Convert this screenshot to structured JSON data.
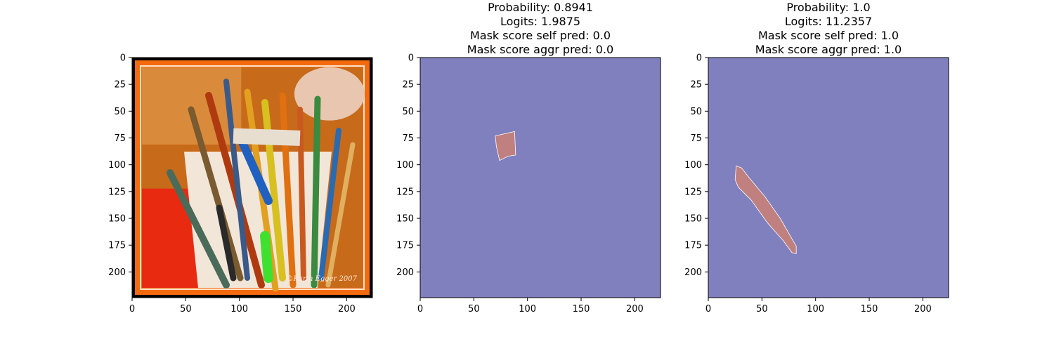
{
  "chart_data": [
    {
      "type": "image",
      "title_lines": [],
      "image_content": "paintbrushes in a bucket, orange frame",
      "signature": "©Karin Egger 2007",
      "xlim": [
        0,
        224
      ],
      "ylim": [
        224,
        0
      ],
      "xticks": [
        "0",
        "50",
        "100",
        "150",
        "200"
      ],
      "yticks": [
        "0",
        "25",
        "50",
        "75",
        "100",
        "125",
        "150",
        "175",
        "200"
      ]
    },
    {
      "type": "heatmap",
      "title_lines": [
        "Probability: 0.8941",
        "Logits: 1.9875",
        "Mask score self pred: 0.0",
        "Mask score aggr pred: 0.0"
      ],
      "xlim": [
        0,
        224
      ],
      "ylim": [
        224,
        0
      ],
      "xticks": [
        "0",
        "50",
        "100",
        "150",
        "200"
      ],
      "yticks": [
        "0",
        "25",
        "50",
        "75",
        "100",
        "125",
        "150",
        "175",
        "200"
      ],
      "background_color": "#8080bf",
      "mask_color": "#bf807f",
      "mask_region": [
        [
          70,
          73
        ],
        [
          88,
          69
        ],
        [
          89,
          91
        ],
        [
          82,
          92
        ],
        [
          74,
          96
        ],
        [
          71,
          83
        ]
      ]
    },
    {
      "type": "heatmap",
      "title_lines": [
        "Probability: 1.0",
        "Logits: 11.2357",
        "Mask score self pred: 1.0",
        "Mask score aggr pred: 1.0"
      ],
      "xlim": [
        0,
        224
      ],
      "ylim": [
        224,
        0
      ],
      "xticks": [
        "0",
        "50",
        "100",
        "150",
        "200"
      ],
      "yticks": [
        "0",
        "25",
        "50",
        "75",
        "100",
        "125",
        "150",
        "175",
        "200"
      ],
      "background_color": "#8080bf",
      "mask_color": "#bf807f",
      "mask_region": [
        [
          26,
          101
        ],
        [
          31,
          103
        ],
        [
          38,
          112
        ],
        [
          53,
          130
        ],
        [
          67,
          150
        ],
        [
          82,
          176
        ],
        [
          82,
          183
        ],
        [
          78,
          182
        ],
        [
          70,
          171
        ],
        [
          55,
          154
        ],
        [
          40,
          133
        ],
        [
          28,
          121
        ],
        [
          25,
          114
        ]
      ]
    }
  ]
}
